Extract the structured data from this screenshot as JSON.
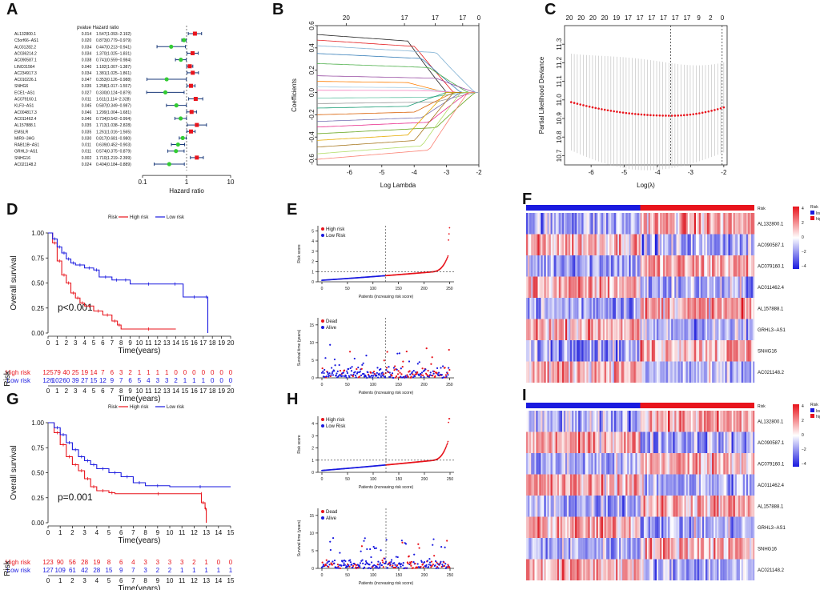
{
  "colors": {
    "high": "#e8141c",
    "low": "#1a1adf",
    "forest_up": "#e8141c",
    "forest_down": "#33cc33",
    "ci": "#1a3a7a"
  },
  "panel_letters": [
    "A",
    "B",
    "C",
    "D",
    "E",
    "F",
    "G",
    "H",
    "I"
  ],
  "chart_data": [
    {
      "panel": "A",
      "type": "forest",
      "headers": {
        "pvalue": "pvalue",
        "hr": "Hazard ratio"
      },
      "xlabel": "Hazard ratio",
      "xticks": [
        "0.1",
        "1",
        "10"
      ],
      "rows": [
        {
          "gene": "AL132800.1",
          "p": "0.014",
          "hr": 1.547,
          "lo": 1.093,
          "hi": 2.192,
          "text": "1.547(1.093−2.192)"
        },
        {
          "gene": "C5orf66−AS1",
          "p": "0.020",
          "hr": 0.873,
          "lo": 0.779,
          "hi": 0.979,
          "text": "0.873(0.779−0.979)"
        },
        {
          "gene": "AL031282.2",
          "p": "0.034",
          "hr": 0.447,
          "lo": 0.213,
          "hi": 0.941,
          "text": "0.447(0.213−0.941)"
        },
        {
          "gene": "AC036214.2",
          "p": "0.034",
          "hr": 1.37,
          "lo": 1.025,
          "hi": 1.831,
          "text": "1.370(1.025−1.831)"
        },
        {
          "gene": "AC090587.1",
          "p": "0.038",
          "hr": 0.741,
          "lo": 0.559,
          "hi": 0.984,
          "text": "0.741(0.559−0.984)"
        },
        {
          "gene": "LINC01564",
          "p": "0.040",
          "hr": 1.182,
          "lo": 1.007,
          "hi": 1.387,
          "text": "1.182(1.007−1.387)"
        },
        {
          "gene": "AC234917.3",
          "p": "0.034",
          "hr": 1.381,
          "lo": 1.025,
          "hi": 1.861,
          "text": "1.381(1.025−1.861)"
        },
        {
          "gene": "AC010226.1",
          "p": "0.047",
          "hr": 0.353,
          "lo": 0.126,
          "hi": 0.988,
          "text": "0.353(0.126−0.988)"
        },
        {
          "gene": "SNHG6",
          "p": "0.035",
          "hr": 1.258,
          "lo": 1.017,
          "hi": 1.557,
          "text": "1.258(1.017−1.557)"
        },
        {
          "gene": "ECE1−AS1",
          "p": "0.027",
          "hr": 0.33,
          "lo": 0.124,
          "hi": 0.879,
          "text": "0.330(0.124−0.879)"
        },
        {
          "gene": "AC079160.1",
          "p": "0.011",
          "hr": 1.611,
          "lo": 1.114,
          "hi": 2.328,
          "text": "1.611(1.114−2.328)"
        },
        {
          "gene": "KLF3−AS1",
          "p": "0.045",
          "hr": 0.587,
          "lo": 0.349,
          "hi": 0.987,
          "text": "0.587(0.349−0.987)"
        },
        {
          "gene": "AC004817.3",
          "p": "0.046",
          "hr": 1.299,
          "lo": 1.004,
          "hi": 1.681,
          "text": "1.299(1.004−1.681)"
        },
        {
          "gene": "AC011462.4",
          "p": "0.046",
          "hr": 0.734,
          "lo": 0.542,
          "hi": 0.994,
          "text": "0.734(0.542−0.994)"
        },
        {
          "gene": "AL157888.1",
          "p": "0.035",
          "hr": 1.713,
          "lo": 1.038,
          "hi": 2.828,
          "text": "1.713(1.038−2.828)"
        },
        {
          "gene": "EMSLR",
          "p": "0.035",
          "hr": 1.261,
          "lo": 1.016,
          "hi": 1.565,
          "text": "1.261(1.016−1.565)"
        },
        {
          "gene": "MIR9−3HG",
          "p": "0.030",
          "hr": 0.817,
          "lo": 0.681,
          "hi": 0.98,
          "text": "0.817(0.681−0.980)"
        },
        {
          "gene": "RAB11B−AS1",
          "p": "0.011",
          "hr": 0.639,
          "lo": 0.452,
          "hi": 0.903,
          "text": "0.639(0.452−0.903)"
        },
        {
          "gene": "GRHL3−AS1",
          "p": "0.011",
          "hr": 0.574,
          "lo": 0.375,
          "hi": 0.879,
          "text": "0.574(0.375−0.879)"
        },
        {
          "gene": "SNHG16",
          "p": "0.002",
          "hr": 1.71,
          "lo": 1.219,
          "hi": 2.399,
          "text": "1.710(1.219−2.399)"
        },
        {
          "gene": "AC021148.2",
          "p": "0.024",
          "hr": 0.404,
          "lo": 0.184,
          "hi": 0.889,
          "text": "0.404(0.184−0.889)"
        }
      ]
    },
    {
      "panel": "B",
      "type": "line",
      "title": "",
      "xlabel": "Log Lambda",
      "ylabel": "Coefficients",
      "xlim": [
        -7,
        -2
      ],
      "ylim": [
        -0.65,
        0.6
      ],
      "xticks": [
        "-6",
        "-5",
        "-4",
        "-3",
        "-2"
      ],
      "yticks": [
        "-0.6",
        "-0.4",
        "-0.2",
        "0.0",
        "0.2",
        "0.4",
        "0.6"
      ],
      "top_ticks": [
        "20",
        "17",
        "17",
        "17",
        "0"
      ]
    },
    {
      "panel": "C",
      "type": "line",
      "xlabel": "Log(λ)",
      "ylabel": "Partial Likelihood Deviance",
      "xlim": [
        -6.8,
        -1.9
      ],
      "ylim": [
        10.65,
        11.4
      ],
      "xticks": [
        "-6",
        "-5",
        "-4",
        "-3",
        "-2"
      ],
      "yticks": [
        "10.7",
        "10.8",
        "10.9",
        "11.0",
        "11.1",
        "11.2",
        "11.3"
      ],
      "top_ticks": [
        "20",
        "20",
        "20",
        "20",
        "19",
        "17",
        "17",
        "17",
        "17",
        "17",
        "17",
        "9",
        "2",
        "0"
      ],
      "lambda_min": -3.6,
      "lambda_1se": -2.05
    },
    {
      "panel": "D",
      "type": "line",
      "title": "Risk",
      "ylabel": "Overall survival",
      "xlabel": "Time(years)",
      "legend": {
        "title": "Risk",
        "high": "High risk",
        "low": "Low risk"
      },
      "pvalue": "p<0.001",
      "xticks": [
        "0",
        "1",
        "2",
        "3",
        "4",
        "5",
        "6",
        "7",
        "8",
        "9",
        "10",
        "11",
        "12",
        "13",
        "14",
        "15",
        "16",
        "17",
        "18",
        "19",
        "20"
      ],
      "yticks": [
        "0.00",
        "0.25",
        "0.50",
        "0.75",
        "1.00"
      ],
      "xlim": [
        0,
        20
      ],
      "ylim": [
        0,
        1
      ],
      "table_axis_label": "Risk",
      "risk_table": {
        "high_label": "High risk",
        "high": [
          "125",
          "79",
          "40",
          "25",
          "19",
          "14",
          "7",
          "6",
          "3",
          "2",
          "1",
          "1",
          "1",
          "1",
          "0",
          "0",
          "0",
          "0",
          "0",
          "0",
          "0"
        ],
        "low_label": "Low risk",
        "low": [
          "126",
          "102",
          "60",
          "39",
          "27",
          "15",
          "12",
          "9",
          "7",
          "6",
          "5",
          "4",
          "3",
          "3",
          "2",
          "1",
          "1",
          "1",
          "0",
          "0",
          "0"
        ]
      },
      "high_steps": [
        [
          0,
          1
        ],
        [
          0.5,
          0.9
        ],
        [
          1,
          0.72
        ],
        [
          1.5,
          0.58
        ],
        [
          2,
          0.5
        ],
        [
          2.5,
          0.4
        ],
        [
          3,
          0.35
        ],
        [
          3.5,
          0.3
        ],
        [
          4,
          0.27
        ],
        [
          5,
          0.22
        ],
        [
          6,
          0.18
        ],
        [
          7,
          0.12
        ],
        [
          7.6,
          0.08
        ],
        [
          8,
          0.04
        ],
        [
          14,
          0.04
        ]
      ],
      "low_steps": [
        [
          0,
          1
        ],
        [
          0.5,
          0.94
        ],
        [
          1,
          0.86
        ],
        [
          1.5,
          0.8
        ],
        [
          2,
          0.74
        ],
        [
          2.5,
          0.7
        ],
        [
          3,
          0.68
        ],
        [
          4,
          0.65
        ],
        [
          5,
          0.63
        ],
        [
          5.6,
          0.56
        ],
        [
          7,
          0.53
        ],
        [
          8,
          0.53
        ],
        [
          9,
          0.49
        ],
        [
          13,
          0.49
        ],
        [
          14.8,
          0.36
        ],
        [
          17.2,
          0.36
        ],
        [
          17.5,
          0
        ]
      ]
    },
    {
      "panel": "E",
      "type": "scatter",
      "top": {
        "ylabel": "Risk score",
        "xlabel": "Patients (increasing risk score)",
        "legend": [
          "High risk",
          "Low Risk"
        ],
        "xticks": [
          "0",
          "50",
          "100",
          "150",
          "200",
          "250"
        ],
        "yticks": [
          "0",
          "1",
          "2",
          "3",
          "4",
          "5"
        ],
        "ylim": [
          0,
          5.5
        ],
        "n": 251,
        "cut": 125
      },
      "bottom": {
        "ylabel": "Survival time (years)",
        "legend": [
          "Dead",
          "Alive"
        ],
        "xticks": [
          "0",
          "50",
          "100",
          "150",
          "200",
          "250"
        ],
        "yticks": [
          "0",
          "5",
          "10",
          "15"
        ],
        "ylim": [
          0,
          17
        ]
      }
    },
    {
      "panel": "F",
      "type": "heatmap",
      "genes": [
        "AL132800.1",
        "AC090587.1",
        "AC079160.1",
        "AC011462.4",
        "AL157888.1",
        "GRHL3−AS1",
        "SNHG16",
        "AC021148.2"
      ],
      "bar_label": "Risk",
      "legend_title": "Risk",
      "legend": [
        "low",
        "high"
      ],
      "scale": [
        "4",
        "2",
        "0",
        "−2",
        "−4"
      ]
    },
    {
      "panel": "G",
      "type": "line",
      "ylabel": "Overall survival",
      "xlabel": "Time(years)",
      "legend": {
        "title": "Risk",
        "high": "High risk",
        "low": "Low risk"
      },
      "pvalue": "p=0.001",
      "xticks": [
        "0",
        "1",
        "2",
        "3",
        "4",
        "5",
        "6",
        "7",
        "8",
        "9",
        "10",
        "11",
        "12",
        "13",
        "14",
        "15"
      ],
      "yticks": [
        "0.00",
        "0.25",
        "0.50",
        "0.75",
        "1.00"
      ],
      "xlim": [
        0,
        15
      ],
      "ylim": [
        0,
        1
      ],
      "table_axis_label": "Risk",
      "risk_table": {
        "high_label": "High risk",
        "high": [
          "123",
          "90",
          "56",
          "28",
          "19",
          "8",
          "6",
          "4",
          "3",
          "3",
          "3",
          "3",
          "2",
          "1",
          "0",
          "0"
        ],
        "low_label": "Low risk",
        "low": [
          "127",
          "109",
          "61",
          "42",
          "28",
          "15",
          "9",
          "7",
          "3",
          "2",
          "2",
          "1",
          "1",
          "1",
          "1",
          "1"
        ]
      },
      "high_steps": [
        [
          0,
          1
        ],
        [
          0.5,
          0.9
        ],
        [
          1,
          0.78
        ],
        [
          1.5,
          0.66
        ],
        [
          2,
          0.58
        ],
        [
          2.5,
          0.52
        ],
        [
          3,
          0.44
        ],
        [
          3.5,
          0.36
        ],
        [
          4,
          0.32
        ],
        [
          5,
          0.3
        ],
        [
          5.5,
          0.29
        ],
        [
          12.6,
          0.29
        ],
        [
          12.6,
          0.2
        ],
        [
          12.9,
          0.14
        ],
        [
          13,
          0
        ]
      ],
      "low_steps": [
        [
          0,
          1
        ],
        [
          0.5,
          0.95
        ],
        [
          1,
          0.88
        ],
        [
          1.5,
          0.8
        ],
        [
          2,
          0.73
        ],
        [
          2.5,
          0.66
        ],
        [
          3,
          0.62
        ],
        [
          3.5,
          0.58
        ],
        [
          4,
          0.54
        ],
        [
          5,
          0.5
        ],
        [
          6,
          0.46
        ],
        [
          7,
          0.4
        ],
        [
          8,
          0.37
        ],
        [
          10,
          0.36
        ],
        [
          15,
          0.36
        ]
      ]
    },
    {
      "panel": "H",
      "type": "scatter",
      "top": {
        "ylabel": "Risk score",
        "xlabel": "Patients (increasing risk score)",
        "legend": [
          "High risk",
          "Low Risk"
        ],
        "xticks": [
          "0",
          "50",
          "100",
          "150",
          "200",
          "250"
        ],
        "yticks": [
          "0",
          "1",
          "2",
          "3",
          "4"
        ],
        "ylim": [
          0,
          4.6
        ],
        "n": 250,
        "cut": 125
      },
      "bottom": {
        "ylabel": "Survival time (years)",
        "legend": [
          "Dead",
          "Alive"
        ],
        "xticks": [
          "0",
          "50",
          "100",
          "150",
          "200",
          "250"
        ],
        "yticks": [
          "0",
          "5",
          "10",
          "15"
        ],
        "ylim": [
          0,
          17
        ]
      }
    },
    {
      "panel": "I",
      "type": "heatmap",
      "genes": [
        "AL132800.1",
        "AC090587.1",
        "AC079160.1",
        "AC011462.4",
        "AL157888.1",
        "GRHL3−AS1",
        "SNHG16",
        "AC021148.2"
      ],
      "bar_label": "Risk",
      "legend_title": "Risk",
      "legend": [
        "low",
        "high"
      ],
      "scale": [
        "4",
        "2",
        "0",
        "−2",
        "−4"
      ]
    }
  ]
}
